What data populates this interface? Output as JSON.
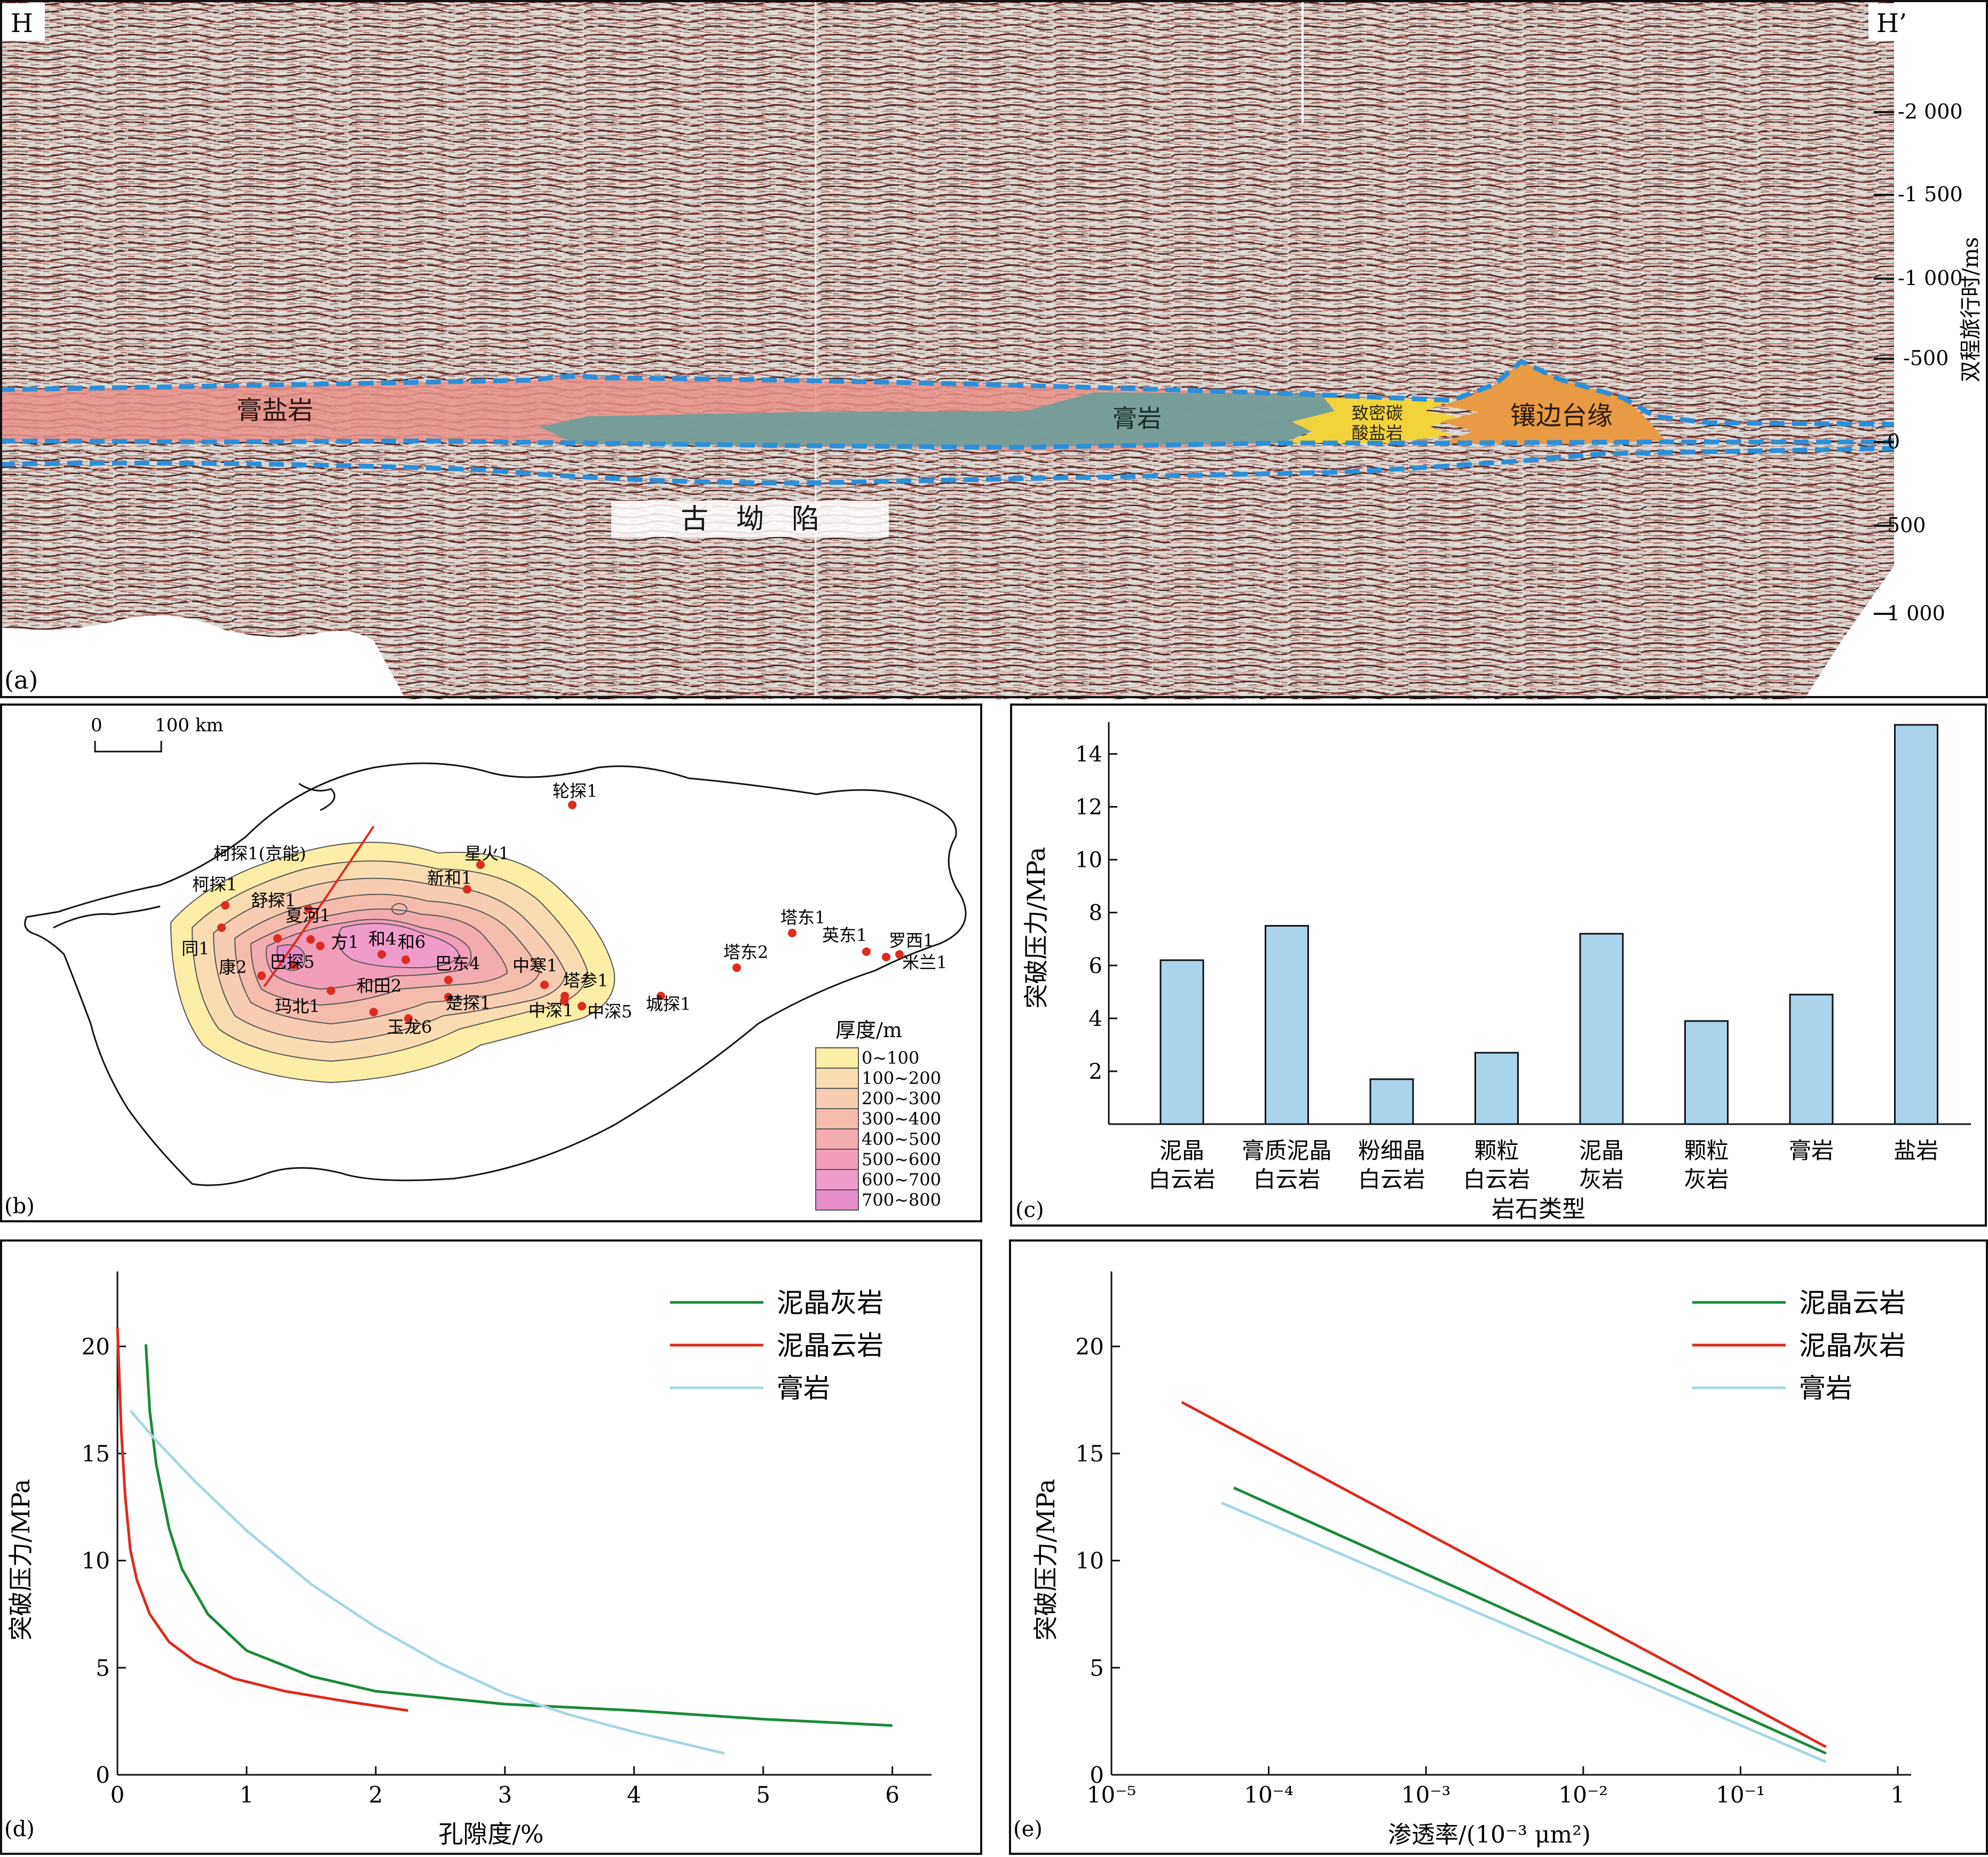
{
  "panel_a": {
    "tag": "(a)",
    "left_label": "H",
    "right_label": "H’",
    "axis_label": "双程旅行时/ms",
    "ticks": [
      "-2 000",
      "-1 500",
      "-1 000",
      "-500",
      "0",
      "500",
      "1 000"
    ],
    "units": {
      "gypsum_salt": "膏盐岩",
      "gypsum": "膏岩",
      "dense_carbonate_line1": "致密碳",
      "dense_carbonate_line2": "酸盐岩",
      "rimmed_platform": "镶边台缘",
      "paleo_depression": "古　坳　陷"
    },
    "colors": {
      "gypsum_salt": "#e8908a",
      "gypsum": "#6f9e9a",
      "dense_carbonate": "#f2d33c",
      "rimmed_platform": "#e89a45",
      "boundary": "#2b8fd9"
    }
  },
  "panel_b": {
    "tag": "(b)",
    "scale_zero": "0",
    "scale_label": "100 km",
    "legend_title": "厚度/m",
    "legend": [
      {
        "label": "0~100",
        "color": "#fbeea6"
      },
      {
        "label": "100~200",
        "color": "#f9ddb0"
      },
      {
        "label": "200~300",
        "color": "#f7ccb0"
      },
      {
        "label": "300~400",
        "color": "#f5bcad"
      },
      {
        "label": "400~500",
        "color": "#f3acb0"
      },
      {
        "label": "500~600",
        "color": "#f29db9"
      },
      {
        "label": "600~700",
        "color": "#f09ccb"
      },
      {
        "label": "700~800",
        "color": "#e48dc8"
      }
    ],
    "wells": [
      "星火1",
      "轮探1",
      "新和1",
      "柯探1(京能)",
      "柯探1",
      "舒探1",
      "夏河1",
      "同1",
      "方1",
      "和4",
      "和6",
      "巴探5",
      "康2",
      "巴东4",
      "中寒1",
      "塔参1",
      "玛北1",
      "和田2",
      "楚探1",
      "中深1",
      "中深5",
      "玉龙6",
      "城探1",
      "塔东2",
      "塔东1",
      "英东1",
      "罗西1",
      "米兰1"
    ]
  },
  "panel_c": {
    "tag": "(c)",
    "chart_data": {
      "type": "bar",
      "categories": [
        [
          "泥晶",
          "白云岩"
        ],
        [
          "膏质泥晶",
          "白云岩"
        ],
        [
          "粉细晶",
          "白云岩"
        ],
        [
          "颗粒",
          "白云岩"
        ],
        [
          "泥晶",
          "灰岩"
        ],
        [
          "颗粒",
          "灰岩"
        ],
        [
          "膏岩"
        ],
        [
          "盐岩"
        ]
      ],
      "values": [
        6.2,
        7.5,
        1.7,
        2.7,
        7.2,
        3.9,
        4.9,
        15.1
      ],
      "xlabel": "岩石类型",
      "ylabel": "突破压力/MPa",
      "ylim": [
        0,
        15.2
      ],
      "yticks": [
        "2",
        "4",
        "6",
        "8",
        "10",
        "12",
        "14"
      ],
      "bar_color": "#a9d4ec"
    }
  },
  "panel_d": {
    "tag": "(d)",
    "chart_data": {
      "type": "line",
      "xlabel": "孔隙度/%",
      "ylabel": "突破压力/MPa",
      "xlim": [
        0,
        6.2
      ],
      "ylim": [
        0,
        23.5
      ],
      "xticks": [
        "0",
        "1",
        "2",
        "3",
        "4",
        "5",
        "6"
      ],
      "yticks": [
        "0",
        "5",
        "10",
        "15",
        "20"
      ],
      "series": [
        {
          "name": "泥晶灰岩",
          "color": "#1a8a3a",
          "points": [
            [
              0.22,
              20.1
            ],
            [
              0.25,
              17.0
            ],
            [
              0.3,
              14.5
            ],
            [
              0.4,
              11.5
            ],
            [
              0.5,
              9.6
            ],
            [
              0.7,
              7.5
            ],
            [
              1.0,
              5.8
            ],
            [
              1.5,
              4.6
            ],
            [
              2.0,
              3.9
            ],
            [
              3.0,
              3.3
            ],
            [
              4.0,
              3.0
            ],
            [
              5.0,
              2.6
            ],
            [
              6.0,
              2.3
            ]
          ]
        },
        {
          "name": "泥晶云岩",
          "color": "#dd2b1e",
          "points": [
            [
              0.0,
              20.9
            ],
            [
              0.03,
              16.0
            ],
            [
              0.06,
              13.0
            ],
            [
              0.1,
              10.5
            ],
            [
              0.15,
              9.1
            ],
            [
              0.25,
              7.5
            ],
            [
              0.4,
              6.2
            ],
            [
              0.6,
              5.3
            ],
            [
              0.9,
              4.5
            ],
            [
              1.3,
              3.9
            ],
            [
              1.8,
              3.4
            ],
            [
              2.25,
              3.0
            ]
          ]
        },
        {
          "name": "膏岩",
          "color": "#a6d6e4",
          "points": [
            [
              0.1,
              17.0
            ],
            [
              0.3,
              15.6
            ],
            [
              0.6,
              13.7
            ],
            [
              1.0,
              11.4
            ],
            [
              1.5,
              8.9
            ],
            [
              2.0,
              6.9
            ],
            [
              2.5,
              5.2
            ],
            [
              3.0,
              3.8
            ],
            [
              3.5,
              2.8
            ],
            [
              4.0,
              2.0
            ],
            [
              4.7,
              1.0
            ]
          ]
        }
      ]
    }
  },
  "panel_e": {
    "tag": "(e)",
    "chart_data": {
      "type": "line",
      "xscale": "log",
      "xlabel": "渗透率/(10⁻³ μm²)",
      "ylabel": "突破压力/MPa",
      "xlim": [
        1e-05,
        1
      ],
      "ylim": [
        0,
        23.5
      ],
      "xticks": [
        "10⁻⁵",
        "10⁻⁴",
        "10⁻³",
        "10⁻²",
        "10⁻¹",
        "1"
      ],
      "yticks": [
        "0",
        "5",
        "10",
        "15",
        "20"
      ],
      "series": [
        {
          "name": "泥晶云岩",
          "color": "#1a8a3a",
          "points": [
            [
              6e-05,
              13.4
            ],
            [
              0.35,
              1.0
            ]
          ]
        },
        {
          "name": "泥晶灰岩",
          "color": "#dd2b1e",
          "points": [
            [
              2.8e-05,
              17.4
            ],
            [
              0.35,
              1.3
            ]
          ]
        },
        {
          "name": "膏岩",
          "color": "#a6d6e4",
          "points": [
            [
              5e-05,
              12.7
            ],
            [
              0.35,
              0.6
            ]
          ]
        }
      ]
    }
  }
}
